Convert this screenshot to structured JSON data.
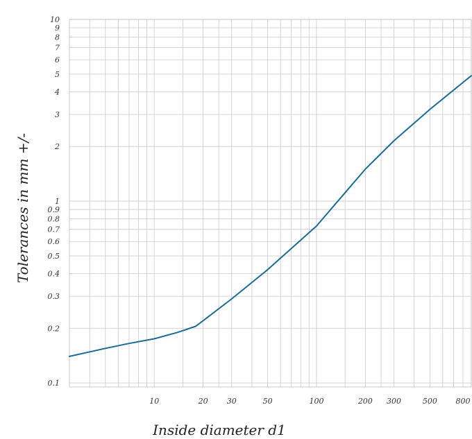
{
  "chart_data": {
    "type": "line",
    "title": "",
    "xlabel": "Inside diameter d1",
    "ylabel": "Tolerances in mm +/-",
    "xscale": "log",
    "yscale": "log",
    "xlim": [
      3,
      900
    ],
    "ylim": [
      0.095,
      10
    ],
    "grid": true,
    "legend": "none",
    "x_ticks": [
      10,
      20,
      30,
      50,
      100,
      200,
      300,
      500,
      800
    ],
    "x_tick_labels": [
      "10",
      "20",
      "30",
      "50",
      "100",
      "200",
      "300",
      "500",
      "800"
    ],
    "x_minor_grid": [
      4,
      5,
      6,
      7,
      8,
      9,
      15,
      25,
      40,
      60,
      70,
      80,
      90,
      150,
      250,
      400,
      600,
      700,
      900
    ],
    "y_ticks": [
      0.1,
      0.2,
      0.3,
      0.4,
      0.5,
      0.6,
      0.7,
      0.8,
      0.9,
      1,
      2,
      3,
      4,
      5,
      6,
      7,
      8,
      9,
      10
    ],
    "y_tick_labels": [
      "0.1",
      "0.2",
      "0.3",
      "0.4",
      "0.5",
      "0.6",
      "0.7",
      "0.8",
      "0.9",
      "1",
      "2",
      "3",
      "4",
      "5",
      "6",
      "7",
      "8",
      "9",
      "10"
    ],
    "series": [
      {
        "color": "#1a6a96",
        "x": [
          3,
          5,
          7,
          10,
          14,
          18,
          20,
          30,
          50,
          100,
          200,
          300,
          500,
          800,
          900
        ],
        "y": [
          0.14,
          0.155,
          0.165,
          0.175,
          0.19,
          0.205,
          0.22,
          0.29,
          0.42,
          0.73,
          1.5,
          2.15,
          3.2,
          4.5,
          4.9
        ]
      }
    ]
  }
}
